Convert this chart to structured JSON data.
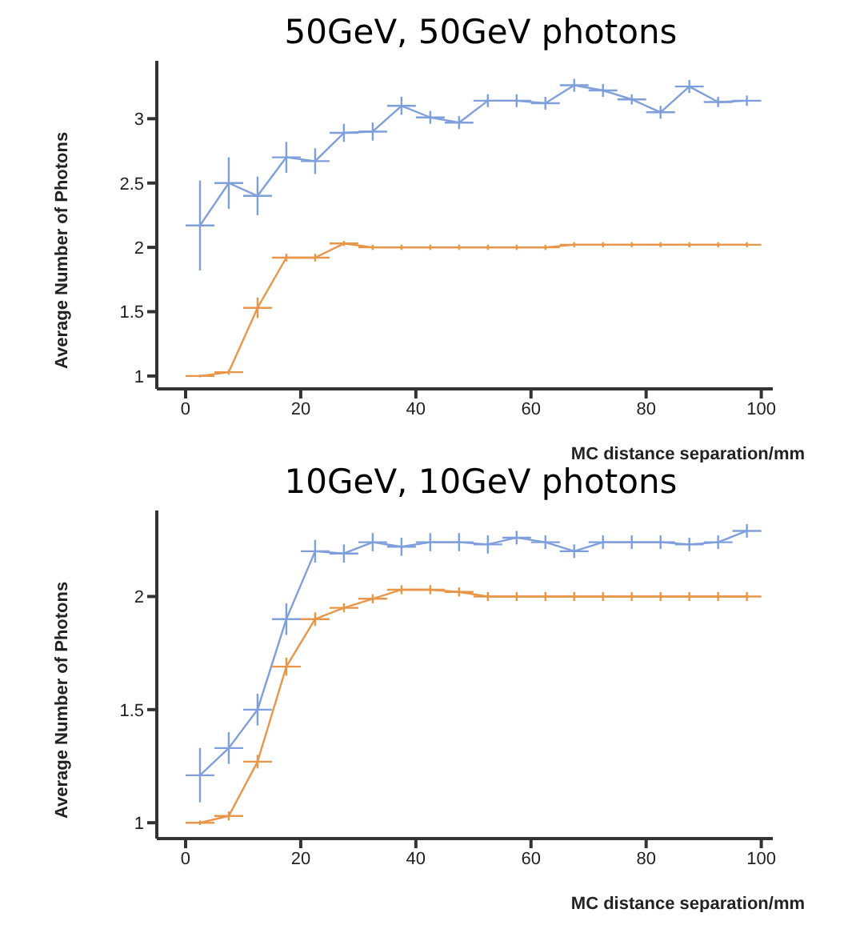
{
  "chart_data": [
    {
      "type": "line",
      "title": "50GeV, 50GeV photons",
      "xlabel": "MC distance separation/mm",
      "ylabel": "Average Number of Photons",
      "x": [
        2.5,
        7.5,
        12.5,
        17.5,
        22.5,
        27.5,
        32.5,
        37.5,
        42.5,
        47.5,
        52.5,
        57.5,
        62.5,
        67.5,
        72.5,
        77.5,
        82.5,
        87.5,
        92.5,
        97.5
      ],
      "xlim": [
        -5,
        102
      ],
      "xticks": [
        0,
        20,
        40,
        60,
        80,
        100
      ],
      "ylim": [
        0.9,
        3.45
      ],
      "yticks": [
        1,
        1.5,
        2,
        2.5,
        3
      ],
      "marker": "none",
      "grid": false,
      "series": [
        {
          "color": "#7f9fdc",
          "values": [
            2.17,
            2.5,
            2.4,
            2.7,
            2.67,
            2.89,
            2.9,
            3.1,
            3.01,
            2.97,
            3.14,
            3.14,
            3.12,
            3.26,
            3.22,
            3.15,
            3.05,
            3.25,
            3.13,
            3.14
          ],
          "errors": [
            0.35,
            0.2,
            0.15,
            0.12,
            0.1,
            0.07,
            0.07,
            0.07,
            0.05,
            0.05,
            0.05,
            0.05,
            0.05,
            0.05,
            0.05,
            0.04,
            0.05,
            0.05,
            0.04,
            0.04
          ],
          "xerrors": [
            2.5,
            2.5,
            2.5,
            2.5,
            2.5,
            2.5,
            2.5,
            2.5,
            2.5,
            2.5,
            2.5,
            2.5,
            2.5,
            2.5,
            2.5,
            2.5,
            2.5,
            2.5,
            2.5,
            2.5
          ]
        },
        {
          "color": "#e8964a",
          "values": [
            1.0,
            1.03,
            1.53,
            1.92,
            1.92,
            2.03,
            2.0,
            2.0,
            2.0,
            2.0,
            2.0,
            2.0,
            2.0,
            2.02,
            2.02,
            2.02,
            2.02,
            2.02,
            2.02,
            2.02
          ],
          "errors": [
            0.01,
            0.02,
            0.08,
            0.03,
            0.03,
            0.02,
            0.02,
            0.02,
            0.02,
            0.02,
            0.02,
            0.02,
            0.02,
            0.02,
            0.02,
            0.02,
            0.02,
            0.02,
            0.02,
            0.02
          ],
          "xerrors": [
            2.5,
            2.5,
            2.5,
            2.5,
            2.5,
            2.5,
            2.5,
            2.5,
            2.5,
            2.5,
            2.5,
            2.5,
            2.5,
            2.5,
            2.5,
            2.5,
            2.5,
            2.5,
            2.5,
            2.5
          ]
        }
      ]
    },
    {
      "type": "line",
      "title": "10GeV, 10GeV photons",
      "xlabel": "MC distance separation/mm",
      "ylabel": "Average Number of Photons",
      "x": [
        2.5,
        7.5,
        12.5,
        17.5,
        22.5,
        27.5,
        32.5,
        37.5,
        42.5,
        47.5,
        52.5,
        57.5,
        62.5,
        67.5,
        72.5,
        77.5,
        82.5,
        87.5,
        92.5,
        97.5
      ],
      "xlim": [
        -5,
        102
      ],
      "xticks": [
        0,
        20,
        40,
        60,
        80,
        100
      ],
      "ylim": [
        0.93,
        2.38
      ],
      "yticks": [
        1,
        1.5,
        2
      ],
      "marker": "none",
      "grid": false,
      "series": [
        {
          "color": "#7f9fdc",
          "values": [
            1.21,
            1.33,
            1.5,
            1.9,
            2.2,
            2.19,
            2.24,
            2.22,
            2.24,
            2.24,
            2.23,
            2.26,
            2.24,
            2.2,
            2.24,
            2.24,
            2.24,
            2.23,
            2.24,
            2.29
          ],
          "errors": [
            0.12,
            0.07,
            0.07,
            0.07,
            0.05,
            0.04,
            0.04,
            0.04,
            0.04,
            0.04,
            0.04,
            0.03,
            0.03,
            0.03,
            0.03,
            0.03,
            0.03,
            0.03,
            0.03,
            0.03
          ],
          "xerrors": [
            2.5,
            2.5,
            2.5,
            2.5,
            2.5,
            2.5,
            2.5,
            2.5,
            2.5,
            2.5,
            2.5,
            2.5,
            2.5,
            2.5,
            2.5,
            2.5,
            2.5,
            2.5,
            2.5,
            2.5
          ]
        },
        {
          "color": "#e8964a",
          "values": [
            1.0,
            1.03,
            1.27,
            1.69,
            1.9,
            1.95,
            1.99,
            2.03,
            2.03,
            2.02,
            2.0,
            2.0,
            2.0,
            2.0,
            2.0,
            2.0,
            2.0,
            2.0,
            2.0,
            2.0
          ],
          "errors": [
            0.01,
            0.02,
            0.03,
            0.04,
            0.03,
            0.02,
            0.02,
            0.02,
            0.02,
            0.02,
            0.02,
            0.02,
            0.02,
            0.02,
            0.02,
            0.02,
            0.02,
            0.02,
            0.02,
            0.02
          ],
          "xerrors": [
            2.5,
            2.5,
            2.5,
            2.5,
            2.5,
            2.5,
            2.5,
            2.5,
            2.5,
            2.5,
            2.5,
            2.5,
            2.5,
            2.5,
            2.5,
            2.5,
            2.5,
            2.5,
            2.5,
            2.5
          ]
        }
      ]
    }
  ]
}
